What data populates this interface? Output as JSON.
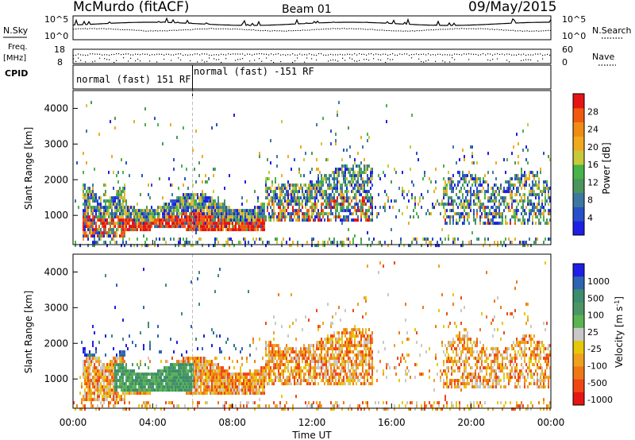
{
  "header": {
    "station": "McMurdo (fitACF)",
    "beam": "Beam 01",
    "date": "09/May/2015"
  },
  "strip": {
    "nsky_label": "N.Sky",
    "nsky_ticks": [
      "10^5",
      "10^0"
    ],
    "nsearch_label": "N.Search",
    "freq_label_1": "Freq.",
    "freq_label_2": "[MHz]",
    "freq_ticks": [
      "18",
      "8"
    ],
    "nave_label": "Nave",
    "nave_ticks": [
      "60",
      "0"
    ],
    "cpid_label": "CPID",
    "cpid_segments": [
      "normal (fast) 151 RF",
      "normal (fast) -151 RF"
    ],
    "cpid_change_hour": 6.0
  },
  "colors": {
    "power": [
      "#1e1ee6",
      "#2850c8",
      "#3c78a0",
      "#4b965a",
      "#46b446",
      "#c8c83c",
      "#f0aa1e",
      "#f08c14",
      "#f05a0f",
      "#e61414"
    ],
    "velocity": [
      "#1e1ee6",
      "#2d64b4",
      "#3c8c6e",
      "#4b9664",
      "#5ab450",
      "#c8c8c8",
      "#e6c80a",
      "#f0a01e",
      "#f07814",
      "#f04614",
      "#e61414"
    ]
  },
  "chart_data": [
    {
      "type": "heatmap",
      "name": "power",
      "xlabel": "",
      "ylabel": "Slant Range [km]",
      "xlim": [
        0,
        24
      ],
      "ylim": [
        180,
        4500
      ],
      "yticks": [
        "1000",
        "2000",
        "3000",
        "4000"
      ],
      "colorbar_label": "Power [dB]",
      "colorbar_ticks": [
        "4",
        "8",
        "12",
        "16",
        "20",
        "24",
        "28"
      ],
      "colorbar_range": [
        0,
        32
      ],
      "description_of_echo_bands_hours_km": [
        {
          "t": [
            0.5,
            2.5
          ],
          "range": [
            450,
            1700
          ],
          "level": "high"
        },
        {
          "t": [
            2.5,
            9.5
          ],
          "range": [
            600,
            1500
          ],
          "level": "high"
        },
        {
          "t": [
            9.5,
            14.5
          ],
          "range": [
            800,
            2300
          ],
          "level": "medium"
        },
        {
          "t": [
            19.0,
            24.0
          ],
          "range": [
            700,
            2200
          ],
          "level": "low"
        }
      ]
    },
    {
      "type": "heatmap",
      "name": "velocity",
      "xlabel": "Time UT",
      "ylabel": "Slant Range [km]",
      "xlim": [
        0,
        24
      ],
      "ylim": [
        180,
        4500
      ],
      "xticks": [
        "00:00",
        "04:00",
        "08:00",
        "12:00",
        "16:00",
        "20:00",
        "00:00"
      ],
      "yticks": [
        "1000",
        "2000",
        "3000",
        "4000"
      ],
      "colorbar_label": "Velocity [m s",
      "colorbar_label_sup": "-1",
      "colorbar_label_end": "]",
      "colorbar_ticks": [
        "1000",
        "500",
        "100",
        "25",
        "-25",
        "-100",
        "-500",
        "-1000"
      ]
    }
  ]
}
